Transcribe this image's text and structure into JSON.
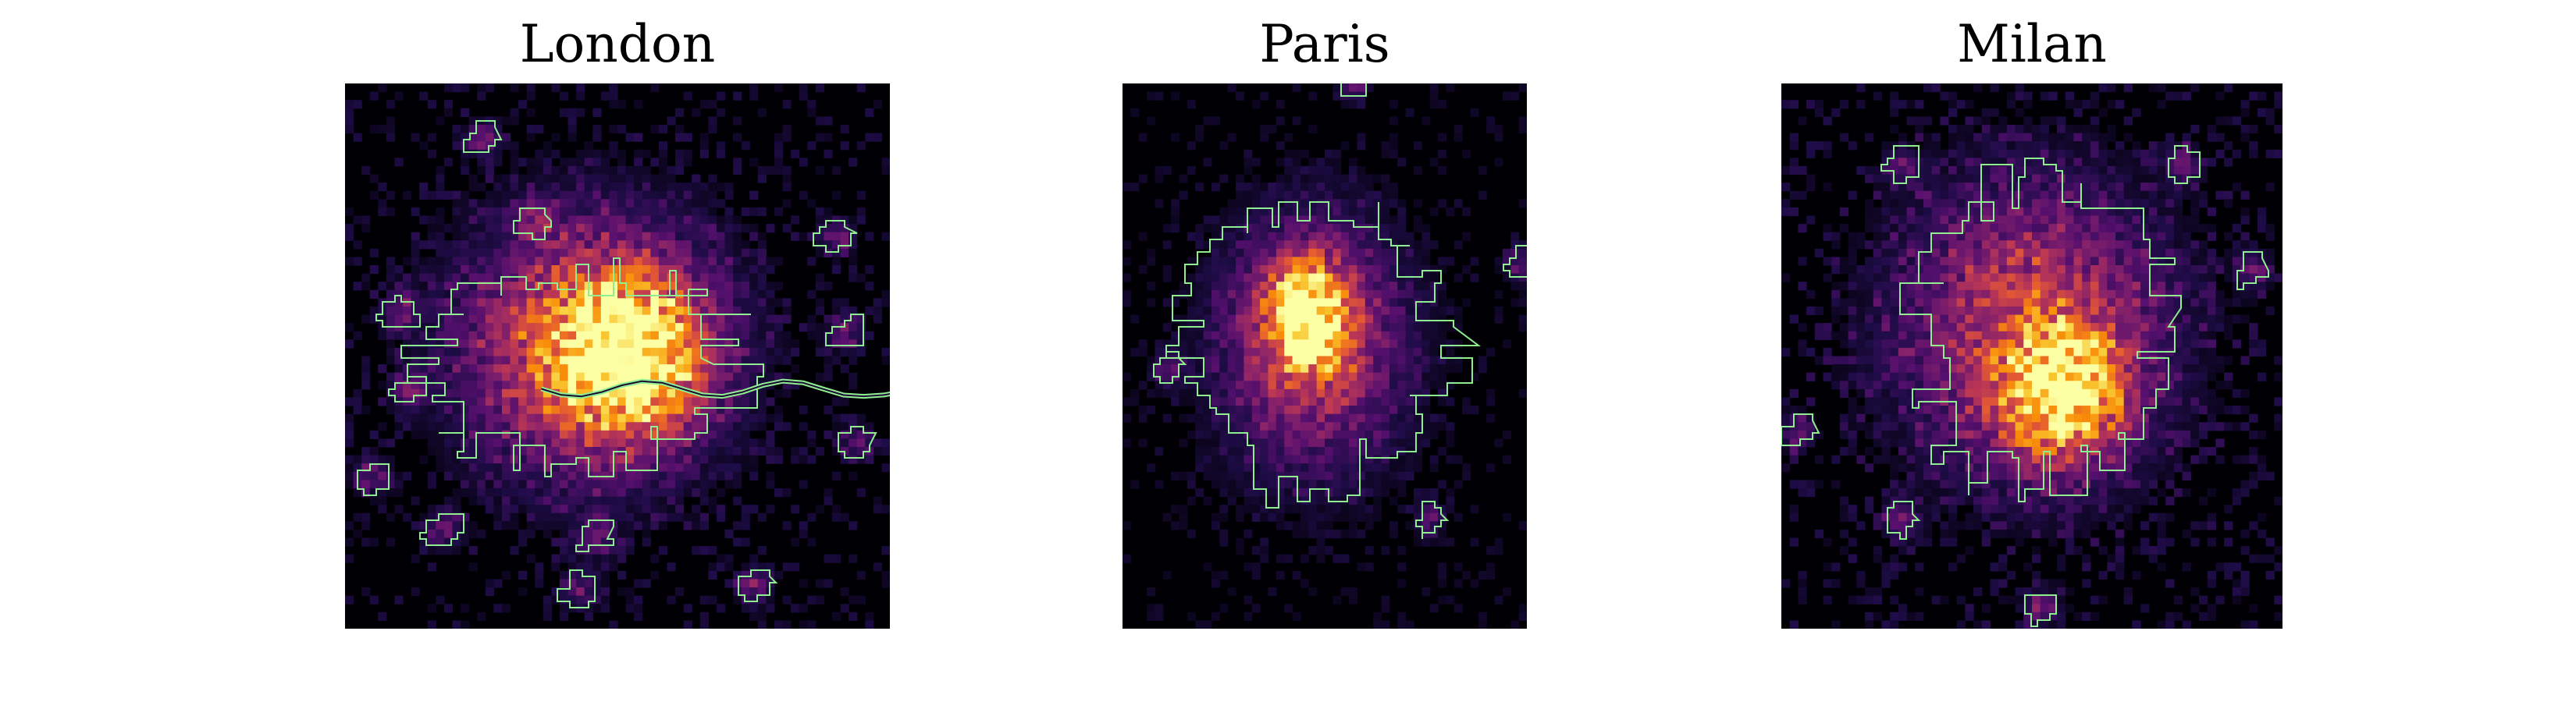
{
  "figure": {
    "colormap": "inferno",
    "boundary_color": "#90ee90",
    "background": "#ffffff"
  },
  "chart_data": [
    {
      "type": "heatmap",
      "title": "London",
      "xlabel": "",
      "ylabel": "",
      "grid": false,
      "axes_ticks": false,
      "colormap": "inferno",
      "boundary_color": "#90ee90",
      "n_cols": 66,
      "n_rows": 66,
      "hotspots": [
        {
          "cx": 0.52,
          "cy": 0.5,
          "intensity": 1.0,
          "spread": 0.09
        },
        {
          "cx": 0.45,
          "cy": 0.48,
          "intensity": 0.7,
          "spread": 0.16
        }
      ],
      "background_intensity": 0.12,
      "urban_boundary_center": [
        0.42,
        0.52
      ],
      "urban_boundary_radius": [
        0.3,
        0.18
      ],
      "has_river": true,
      "satellite_clusters": [
        [
          0.25,
          0.1
        ],
        [
          0.35,
          0.25
        ],
        [
          0.1,
          0.42
        ],
        [
          0.12,
          0.56
        ],
        [
          0.05,
          0.72
        ],
        [
          0.18,
          0.82
        ],
        [
          0.46,
          0.83
        ],
        [
          0.43,
          0.93
        ],
        [
          0.75,
          0.92
        ],
        [
          0.9,
          0.28
        ],
        [
          0.92,
          0.46
        ],
        [
          0.94,
          0.66
        ]
      ]
    },
    {
      "type": "heatmap",
      "title": "Paris",
      "xlabel": "",
      "ylabel": "",
      "grid": false,
      "axes_ticks": false,
      "colormap": "inferno",
      "boundary_color": "#90ee90",
      "n_cols": 50,
      "n_rows": 66,
      "hotspots": [
        {
          "cx": 0.46,
          "cy": 0.43,
          "intensity": 1.0,
          "spread": 0.07
        },
        {
          "cx": 0.47,
          "cy": 0.48,
          "intensity": 0.55,
          "spread": 0.16
        }
      ],
      "background_intensity": 0.08,
      "urban_boundary_center": [
        0.47,
        0.48
      ],
      "urban_boundary_radius": [
        0.34,
        0.26
      ],
      "has_river": false,
      "satellite_clusters": [
        [
          0.12,
          0.52
        ],
        [
          0.76,
          0.8
        ],
        [
          0.98,
          0.33
        ],
        [
          0.57,
          0.0
        ]
      ]
    },
    {
      "type": "heatmap",
      "title": "Milan",
      "xlabel": "",
      "ylabel": "",
      "grid": false,
      "axes_ticks": false,
      "colormap": "inferno",
      "boundary_color": "#90ee90",
      "n_cols": 60,
      "n_rows": 66,
      "hotspots": [
        {
          "cx": 0.56,
          "cy": 0.57,
          "intensity": 1.0,
          "spread": 0.08
        },
        {
          "cx": 0.5,
          "cy": 0.45,
          "intensity": 0.6,
          "spread": 0.18
        }
      ],
      "background_intensity": 0.14,
      "urban_boundary_center": [
        0.52,
        0.45
      ],
      "urban_boundary_radius": [
        0.24,
        0.3
      ],
      "has_river": false,
      "satellite_clusters": [
        [
          0.24,
          0.15
        ],
        [
          0.8,
          0.15
        ],
        [
          0.94,
          0.34
        ],
        [
          0.03,
          0.64
        ],
        [
          0.24,
          0.8
        ],
        [
          0.52,
          0.96
        ]
      ]
    }
  ]
}
